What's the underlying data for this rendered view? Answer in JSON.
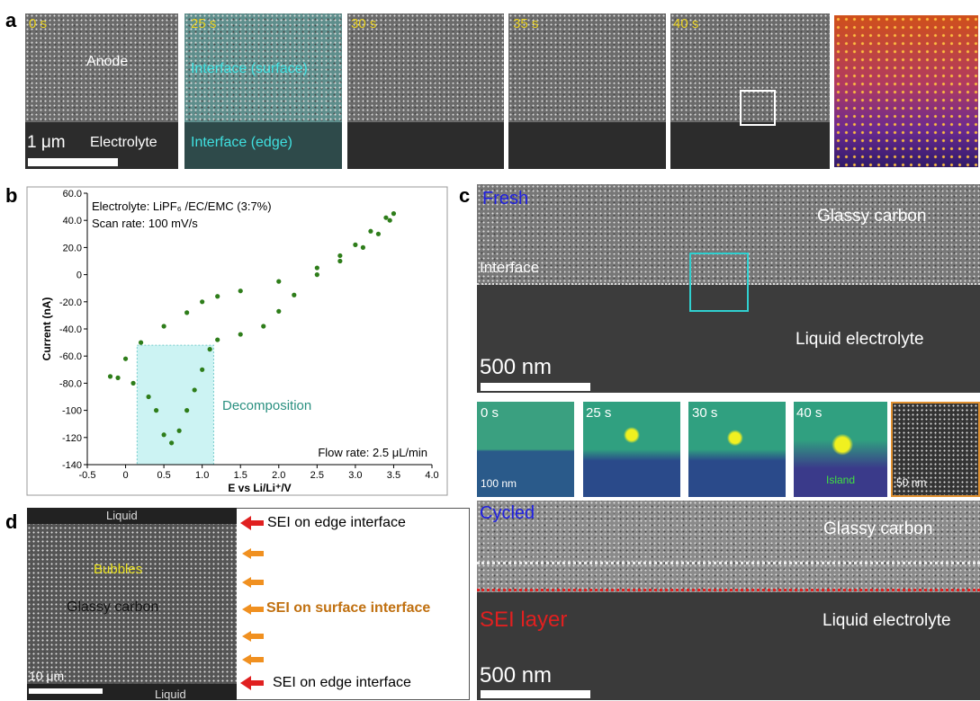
{
  "panel_a": {
    "label": "a",
    "times": [
      "0 s",
      "25 s",
      "30 s",
      "35 s",
      "40 s"
    ],
    "anode": "Anode",
    "electrolyte": "Electrolyte",
    "scale": "1 μm",
    "surface": "Interface (surface)",
    "edge": "Interface (edge)"
  },
  "panel_b": {
    "label": "b",
    "chart": {
      "type": "line",
      "notes": [
        "Electrolyte: LiPF₆ /EC/EMC (3:7%)",
        "Scan rate: 100 mV/s"
      ],
      "flow": "Flow rate: 2.5 μL/min",
      "annotation": "Decomposition",
      "x_label": "E vs Li/Li⁺/V",
      "y_label": "Current (nA)",
      "color": "#2e7d1a",
      "x": [
        -0.2,
        0,
        0.2,
        0.5,
        0.8,
        1.0,
        1.2,
        1.5,
        2.0,
        2.5,
        2.8,
        3.0,
        3.2,
        3.4,
        3.5,
        3.45,
        3.3,
        3.1,
        2.8,
        2.5,
        2.2,
        2.0,
        1.8,
        1.5,
        1.2,
        1.1,
        1.0,
        0.9,
        0.8,
        0.7,
        0.6,
        0.5,
        0.4,
        0.3,
        0.1,
        -0.1
      ],
      "y": [
        -75,
        -62,
        -50,
        -38,
        -28,
        -20,
        -16,
        -12,
        -5,
        5,
        14,
        22,
        32,
        42,
        45,
        40,
        30,
        20,
        10,
        0,
        -15,
        -27,
        -38,
        -44,
        -48,
        -55,
        -70,
        -85,
        -100,
        -115,
        -124,
        -118,
        -100,
        -90,
        -80,
        -76
      ],
      "highlight": {
        "x": [
          0.15,
          1.15
        ],
        "ylim": [
          -140,
          -52
        ]
      },
      "xlim": [
        -0.5,
        4.0
      ],
      "ylim": [
        -140,
        60
      ],
      "xticks": [
        -0.5,
        0,
        0.5,
        {
          "value": 1,
          "label": "1.0"
        },
        1.5,
        {
          "value": 2,
          "label": "2.0"
        },
        2.5,
        {
          "value": 3,
          "label": "3.0"
        },
        3.5,
        {
          "value": 4,
          "label": "4.0"
        }
      ],
      "yticks": [
        {
          "value": 60,
          "label": "60.0"
        },
        {
          "value": 40,
          "label": "40.0"
        },
        {
          "value": 20,
          "label": "20.0"
        },
        0,
        {
          "value": -20,
          "label": "-20.0"
        },
        {
          "value": -40,
          "label": "-40.0"
        },
        {
          "value": -60,
          "label": "-60.0"
        },
        {
          "value": -80,
          "label": "-80.0"
        },
        -100,
        -120,
        -140
      ]
    }
  },
  "panel_c": {
    "label": "c",
    "fresh": "Fresh",
    "glassy": "Glassy carbon",
    "interface": "Interface",
    "liquid": "Liquid electrolyte",
    "scale": "500 nm",
    "times": [
      "0 s",
      "25 s",
      "30 s",
      "40 s"
    ],
    "small_scale": "100 nm",
    "island": "Island",
    "zoom_scale": "50 nm",
    "cycled": "Cycled",
    "glassy2": "Glassy carbon",
    "sei": "SEI layer",
    "liquid2": "Liquid electrolyte",
    "scale2": "500 nm"
  },
  "panel_d": {
    "label": "d",
    "top": "Liquid",
    "bottom": "Liquid",
    "bubbles": "Bubbles",
    "glassy": "Glassy carbon",
    "scale": "10 μm",
    "arrow_labels": [
      "SEI on edge interface",
      "SEI on surface interface",
      "SEI on edge interface"
    ]
  }
}
